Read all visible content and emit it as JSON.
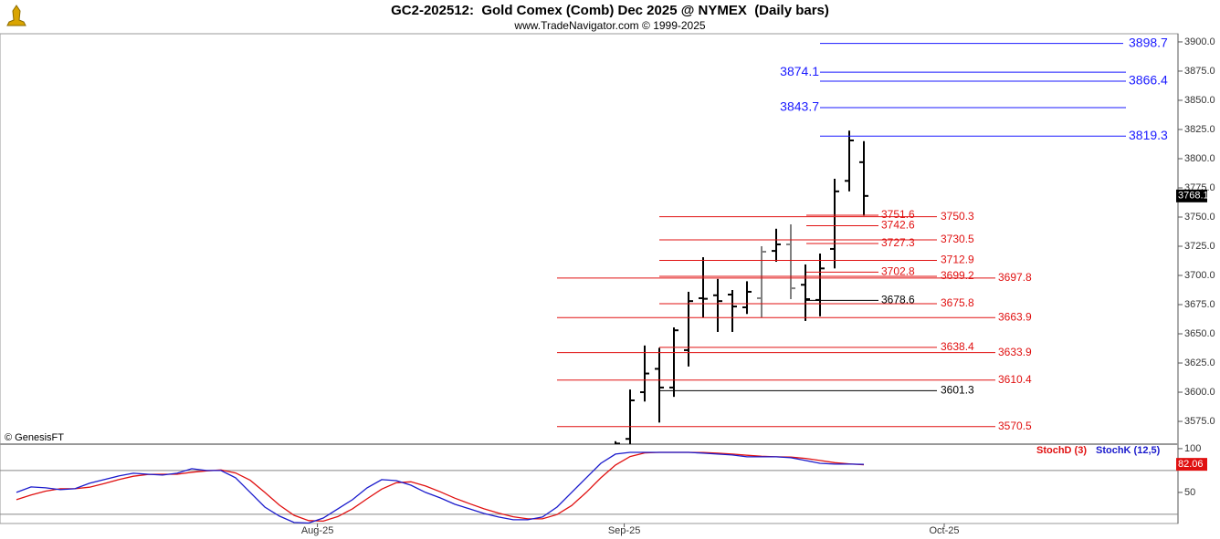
{
  "chart_data": [
    {
      "type": "ohlc",
      "title": "GC2-202512:  Gold Comex (Comb) Dec 2025 @ NYMEX  (Daily bars)",
      "subtitle": "www.TradeNavigator.com © 1999-2025",
      "copyright": "© GenesisFT",
      "xlim": [
        -1.125,
        79.5
      ],
      "ylim": [
        3555.5,
        3907
      ],
      "yticks": [
        {
          "value": 3575,
          "label": "3575.0"
        },
        {
          "value": 3600,
          "label": "3600.0"
        },
        {
          "value": 3625,
          "label": "3625.0"
        },
        {
          "value": 3650,
          "label": "3650.0"
        },
        {
          "value": 3675,
          "label": "3675.0"
        },
        {
          "value": 3700,
          "label": "3700.0"
        },
        {
          "value": 3725,
          "label": "3725.0"
        },
        {
          "value": 3750,
          "label": "3750.0"
        },
        {
          "value": 3775,
          "label": "3775.0"
        },
        {
          "value": 3800,
          "label": "3800.0"
        },
        {
          "value": 3825,
          "label": "3825.0"
        },
        {
          "value": 3850,
          "label": "3850.0"
        },
        {
          "value": 3875,
          "label": "3875.0"
        },
        {
          "value": 3900,
          "label": "3900.0"
        }
      ],
      "x": [
        41,
        42,
        43,
        44,
        45,
        46,
        47,
        48,
        49,
        50,
        51,
        52,
        53,
        54,
        55,
        56,
        57,
        58
      ],
      "open": [
        3552,
        3560,
        3600,
        3620,
        3604,
        3636,
        3680.5,
        3683,
        3683.6,
        3672.7,
        3680.5,
        3721,
        3726.6,
        3692,
        3679,
        3722.7,
        3781,
        3797
      ],
      "high": [
        3558,
        3602.3,
        3640,
        3638,
        3655.5,
        3686,
        3715.6,
        3697,
        3687.5,
        3695,
        3725,
        3740,
        3743.75,
        3709.4,
        3718.75,
        3782.8,
        3824,
        3815
      ],
      "low": [
        3540,
        3555,
        3592,
        3574,
        3596,
        3622,
        3664,
        3651.6,
        3651.6,
        3667,
        3664,
        3711.7,
        3679.7,
        3661,
        3665,
        3706,
        3772,
        3751
      ],
      "close": [
        3556,
        3593,
        3616,
        3604,
        3653,
        3678,
        3680,
        3678,
        3673.4,
        3686,
        3720.3,
        3726.6,
        3689,
        3679.7,
        3706,
        3772,
        3815.6,
        3768.1
      ],
      "bar_colors": [
        "#000000",
        "#000000",
        "#000000",
        "#000000",
        "#000000",
        "#000000",
        "#000000",
        "#000000",
        "#000000",
        "#000000",
        "#808080",
        "#000000",
        "#808080",
        "#000000",
        "#000000",
        "#000000",
        "#000000",
        "#000000"
      ],
      "levels": [
        {
          "value": 3898.7,
          "color": "#1a1aff"
        },
        {
          "value": 3874.1,
          "color": "#1a1aff"
        },
        {
          "value": 3866.4,
          "color": "#1a1aff"
        },
        {
          "value": 3843.7,
          "color": "#1a1aff"
        },
        {
          "value": 3819.3,
          "color": "#1a1aff"
        },
        {
          "value": 3751.6,
          "color": "#e01010"
        },
        {
          "value": 3750.3,
          "color": "#e01010"
        },
        {
          "value": 3742.6,
          "color": "#e01010"
        },
        {
          "value": 3730.5,
          "color": "#e01010"
        },
        {
          "value": 3727.3,
          "color": "#e01010"
        },
        {
          "value": 3712.9,
          "color": "#e01010"
        },
        {
          "value": 3702.8,
          "color": "#e01010"
        },
        {
          "value": 3699.2,
          "color": "#e01010"
        },
        {
          "value": 3697.8,
          "color": "#e01010"
        },
        {
          "value": 3678.6,
          "color": "#000000"
        },
        {
          "value": 3675.8,
          "color": "#e01010"
        },
        {
          "value": 3663.9,
          "color": "#e01010"
        },
        {
          "value": 3638.4,
          "color": "#e01010"
        },
        {
          "value": 3633.9,
          "color": "#e01010"
        },
        {
          "value": 3610.4,
          "color": "#e01010"
        },
        {
          "value": 3601.3,
          "color": "#000000"
        },
        {
          "value": 3570.5,
          "color": "#e01010"
        }
      ]
    },
    {
      "type": "line",
      "xlim": [
        -1.125,
        79.5
      ],
      "ylim": [
        14.5,
        102
      ],
      "yticks": [
        50,
        100
      ],
      "levels": [
        75,
        25
      ],
      "xticks": [
        {
          "value": 20.6,
          "label": "Aug-25"
        },
        {
          "value": 41.6,
          "label": "Sep-25"
        },
        {
          "value": 63.5,
          "label": "Oct-25"
        }
      ],
      "x": [
        0,
        1,
        2,
        3,
        4,
        5,
        6,
        7,
        8,
        9,
        10,
        11,
        12,
        13,
        14,
        15,
        16,
        17,
        18,
        19,
        20,
        21,
        22,
        23,
        24,
        25,
        26,
        27,
        28,
        29,
        30,
        31,
        32,
        33,
        34,
        35,
        36,
        37,
        38,
        39,
        40,
        41,
        42,
        43,
        44,
        45,
        46,
        47,
        48,
        49,
        50,
        51,
        52,
        53,
        54,
        55,
        56,
        57,
        58
      ],
      "series": [
        {
          "name": "StochD (3)",
          "color": "#e01010",
          "values": [
            41.7,
            47,
            51.5,
            54.2,
            54.2,
            56,
            60,
            64.6,
            68.5,
            70.5,
            70.8,
            70.8,
            73,
            74.6,
            75.6,
            72.2,
            63.9,
            50,
            35.4,
            23.9,
            17.8,
            17.2,
            22.4,
            31.3,
            42.7,
            53.8,
            61.1,
            62.1,
            57.3,
            50.7,
            43.5,
            37.2,
            31.3,
            26.4,
            22.2,
            19.8,
            19.8,
            24.7,
            35,
            50,
            66.7,
            81.3,
            91,
            95.1,
            95.8,
            95.8,
            95.8,
            95.5,
            94.8,
            93.8,
            92.4,
            91.3,
            90.6,
            90.3,
            88.9,
            86.5,
            84,
            82.6,
            81.6
          ]
        },
        {
          "name": "StochK (12,5)",
          "color": "#1a1acc",
          "values": [
            50,
            56.3,
            55.2,
            53.1,
            54.2,
            60.4,
            64.6,
            68.8,
            71.9,
            70.8,
            69.8,
            71.9,
            77.1,
            75,
            75,
            66.7,
            50,
            33.3,
            22.9,
            15.6,
            15,
            20.8,
            31.3,
            41.7,
            55.2,
            64.6,
            63.5,
            58.3,
            50,
            43.8,
            36.5,
            31.3,
            26,
            21.9,
            18.8,
            18.8,
            21.9,
            33.3,
            50,
            66.7,
            83.3,
            93.8,
            95.8,
            95.8,
            95.8,
            95.8,
            95.8,
            94.8,
            93.8,
            92.7,
            90.6,
            90.6,
            90.6,
            89.6,
            86.5,
            83.3,
            82.3,
            82.3,
            82.06
          ]
        }
      ]
    }
  ]
}
